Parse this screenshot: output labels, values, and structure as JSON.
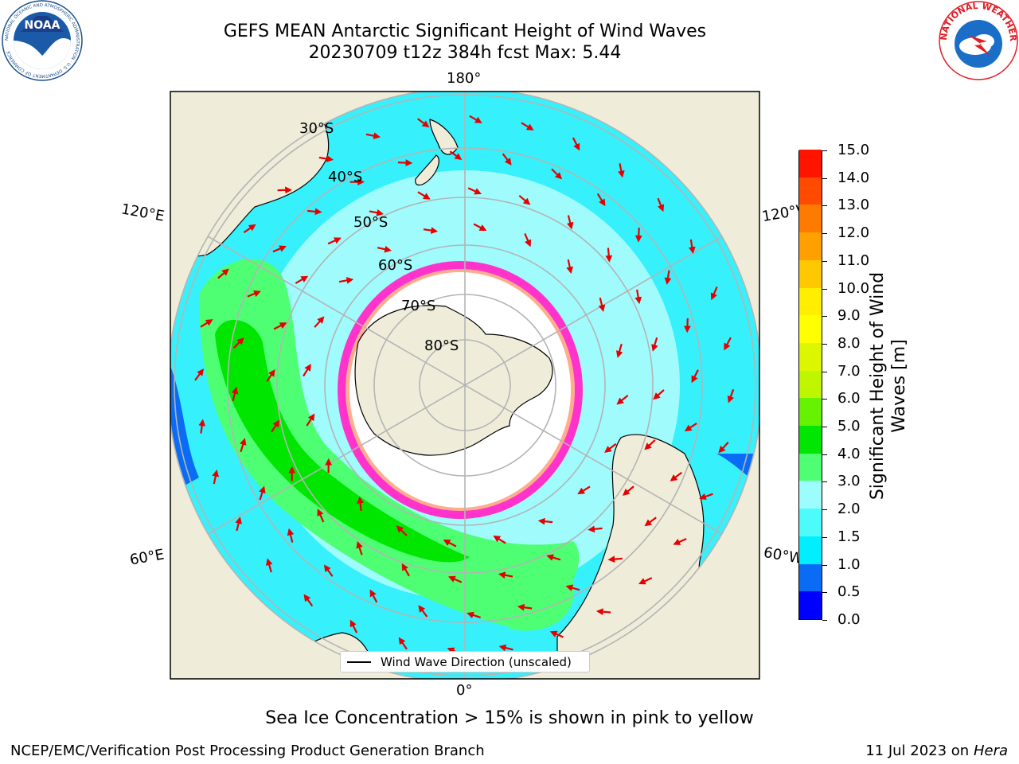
{
  "title": {
    "line1": "GEFS MEAN Antarctic Significant Height of Wind Waves",
    "line2": "20230709 t12z 384h fcst   Max: 5.44"
  },
  "logos": {
    "left": {
      "text": "NOAA",
      "ring_text": "NATIONAL OCEANIC AND ATMOSPHERIC ADMINISTRATION · U.S. DEPARTMENT OF COMMERCE"
    },
    "right": {
      "ring_text": "NATIONAL WEATHER SERVICE"
    }
  },
  "map": {
    "projection": "south-polar-stereographic",
    "longitude_labels": [
      "180°",
      "120°E",
      "120°W",
      "60°E",
      "60°W",
      "0°"
    ],
    "latitude_labels": [
      "30°S",
      "40°S",
      "50°S",
      "60°S",
      "70°S",
      "80°S"
    ],
    "legend": "Wind Wave Direction (unscaled)",
    "colors": {
      "land": "#efedda",
      "ice": "#ffffff",
      "ocean_light": "#a0fbfd",
      "ocean_mid": "#36f1fc",
      "wave_green": "#2bef5c",
      "wave_bright": "#3ce100",
      "sea_ice_edge": "#ff33cc",
      "arrow": "#e60000",
      "grid": "#b4b4b4"
    }
  },
  "colorbar": {
    "label_line1": "Significant Height of Wind",
    "label_line2": "Waves [m]",
    "ticks": [
      "0.0",
      "0.5",
      "1.0",
      "1.5",
      "2.0",
      "3.0",
      "4.0",
      "5.0",
      "6.0",
      "7.0",
      "8.0",
      "9.0",
      "10.0",
      "11.0",
      "12.0",
      "13.0",
      "14.0",
      "15.0"
    ],
    "colors": [
      "#0000ff",
      "#0a6cf5",
      "#00eefe",
      "#4dfbfb",
      "#9dfdfd",
      "#4fff73",
      "#00e600",
      "#66f200",
      "#c0f500",
      "#dcf600",
      "#ffff00",
      "#ffee00",
      "#ffc800",
      "#ffa000",
      "#ff7a00",
      "#ff4a00",
      "#ff1400"
    ]
  },
  "notes": {
    "ice": "Sea Ice Concentration > 15% is shown in pink to yellow",
    "footer_left": "NCEP/EMC/Verification Post Processing Product Generation Branch",
    "footer_right_prefix": "11 Jul 2023 on ",
    "footer_right_host": "Hera"
  }
}
